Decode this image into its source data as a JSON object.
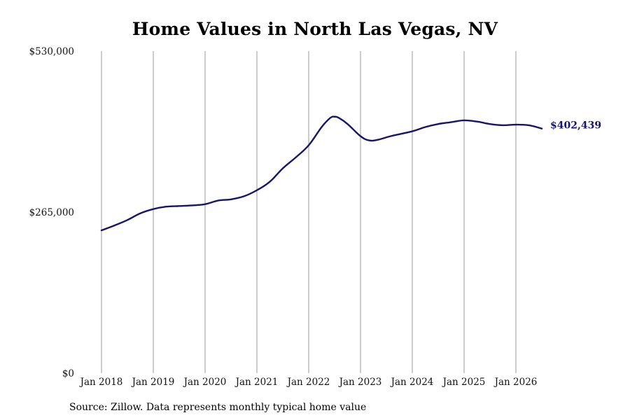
{
  "chart_data": {
    "type": "line",
    "title": "Home Values in North Las Vegas, NV",
    "xlabel": "",
    "ylabel": "",
    "ylim": [
      0,
      530000
    ],
    "yticks": [
      0,
      265000,
      530000
    ],
    "ytick_labels": [
      "$0",
      "$265,000",
      "$530,000"
    ],
    "xticks": [
      "2018-01",
      "2019-01",
      "2020-01",
      "2021-01",
      "2022-01",
      "2023-01",
      "2024-01",
      "2025-01",
      "2026-01"
    ],
    "xtick_labels": [
      "Jan 2018",
      "Jan 2019",
      "Jan 2020",
      "Jan 2021",
      "Jan 2022",
      "Jan 2023",
      "Jan 2024",
      "Jan 2025",
      "Jan 2026"
    ],
    "xlim": [
      "2018-01",
      "2026-08"
    ],
    "grid": "vertical",
    "line_color": "#15156b",
    "end_label": "$402,439",
    "series": [
      {
        "x": [
          "2018-01",
          "2018-04",
          "2018-07",
          "2018-10",
          "2019-01",
          "2019-04",
          "2019-07",
          "2019-10",
          "2020-01",
          "2020-04",
          "2020-07",
          "2020-10",
          "2021-01",
          "2021-04",
          "2021-07",
          "2021-10",
          "2022-01",
          "2022-04",
          "2022-06",
          "2022-07",
          "2022-08",
          "2022-10",
          "2023-01",
          "2023-03",
          "2023-05",
          "2023-08",
          "2024-01",
          "2024-04",
          "2024-07",
          "2024-10",
          "2025-01",
          "2025-04",
          "2025-07",
          "2025-10",
          "2026-01",
          "2026-04",
          "2026-07"
        ],
        "y": [
          235000,
          243000,
          252000,
          263000,
          270000,
          274000,
          275000,
          276000,
          278000,
          284000,
          286000,
          291000,
          301000,
          315000,
          337000,
          355000,
          375000,
          405000,
          420000,
          422000,
          420000,
          410000,
          390000,
          383000,
          384000,
          390000,
          398000,
          405000,
          410000,
          413000,
          416000,
          414000,
          410000,
          408000,
          409000,
          408000,
          402439
        ]
      }
    ]
  },
  "source_note": "Source: Zillow. Data represents monthly typical home value"
}
